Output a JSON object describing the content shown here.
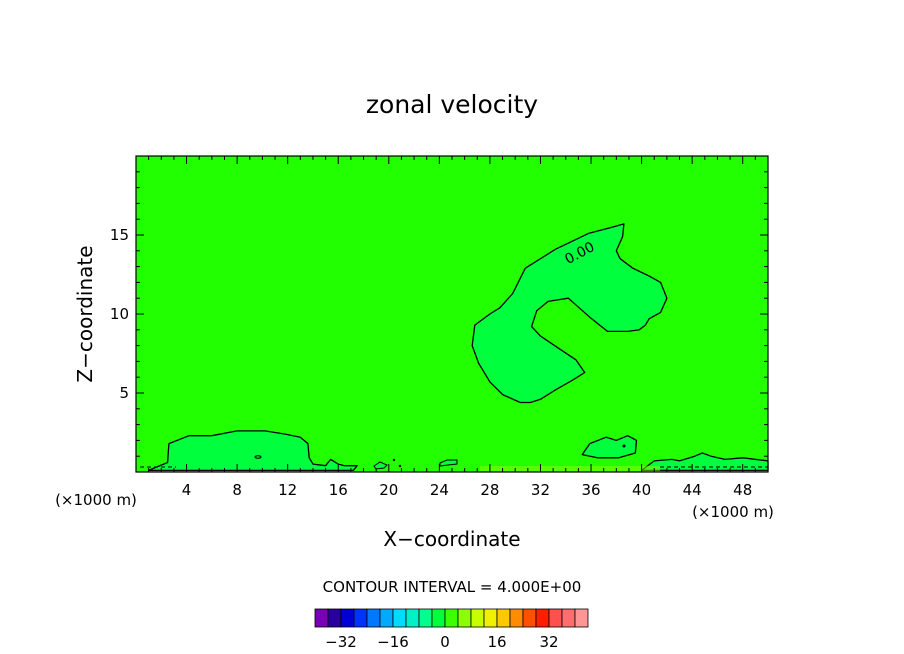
{
  "chart_data": {
    "type": "contour",
    "title": "zonal velocity",
    "xlabel": "X−coordinate",
    "ylabel": "Z−coordinate",
    "x_unit_left": "(×1000 m)",
    "x_unit_right": "(×1000 m)",
    "xlim": [
      0,
      50
    ],
    "ylim": [
      0,
      20
    ],
    "x_ticks": [
      4,
      8,
      12,
      16,
      20,
      24,
      28,
      32,
      36,
      40,
      44,
      48
    ],
    "y_ticks": [
      5,
      10,
      15
    ],
    "contour_label": "0.00",
    "contour_interval_text": "CONTOUR INTERVAL = 4.000E+00",
    "colorbar": {
      "ticks": [
        -32,
        -16,
        0,
        16,
        32
      ],
      "tick_labels": [
        "−32",
        "−16",
        "0",
        "16",
        "32"
      ],
      "colors": [
        "#7a00b4",
        "#2800a0",
        "#0000d2",
        "#0032ff",
        "#0078ff",
        "#00aaff",
        "#00dcff",
        "#00f0c8",
        "#00ff8c",
        "#00ff3c",
        "#3cff00",
        "#8cff00",
        "#c8ff00",
        "#f0f000",
        "#ffc800",
        "#ff8c00",
        "#ff5000",
        "#ff1e00",
        "#ff5050",
        "#ff6e6e",
        "#ff9696"
      ]
    },
    "background_color": "#22ff00",
    "region_color": "#00ff3c",
    "regions": [
      {
        "name": "positive-zone-main",
        "points": [
          [
            30.4,
            4.4
          ],
          [
            29.0,
            4.9
          ],
          [
            28.0,
            5.7
          ],
          [
            27.1,
            6.9
          ],
          [
            26.6,
            8.0
          ],
          [
            26.8,
            9.3
          ],
          [
            28.0,
            10.0
          ],
          [
            28.8,
            10.4
          ],
          [
            29.8,
            11.3
          ],
          [
            30.8,
            12.9
          ],
          [
            33.2,
            14.1
          ],
          [
            35.8,
            15.1
          ],
          [
            37.7,
            15.5
          ],
          [
            38.6,
            15.7
          ],
          [
            38.5,
            14.9
          ],
          [
            38.0,
            14.0
          ],
          [
            38.3,
            13.5
          ],
          [
            39.3,
            12.9
          ],
          [
            40.6,
            12.4
          ],
          [
            41.5,
            12.0
          ],
          [
            42.0,
            11.0
          ],
          [
            41.5,
            10.1
          ],
          [
            40.6,
            9.7
          ],
          [
            40.3,
            9.3
          ],
          [
            39.8,
            9.0
          ],
          [
            38.9,
            8.9
          ],
          [
            37.3,
            8.9
          ],
          [
            35.9,
            9.8
          ],
          [
            34.2,
            11.0
          ],
          [
            32.6,
            10.8
          ],
          [
            31.7,
            10.2
          ],
          [
            31.3,
            9.2
          ],
          [
            32.0,
            8.6
          ],
          [
            33.5,
            7.8
          ],
          [
            34.8,
            7.1
          ],
          [
            35.5,
            6.3
          ],
          [
            34.5,
            5.8
          ],
          [
            33.2,
            5.2
          ],
          [
            32.0,
            4.6
          ],
          [
            31.2,
            4.4
          ]
        ]
      },
      {
        "name": "positive-zone-lower-left",
        "points": [
          [
            1.0,
            0.1
          ],
          [
            2.5,
            0.6
          ],
          [
            2.6,
            1.8
          ],
          [
            4.2,
            2.3
          ],
          [
            6.0,
            2.3
          ],
          [
            8.0,
            2.6
          ],
          [
            10.2,
            2.6
          ],
          [
            11.8,
            2.4
          ],
          [
            13.0,
            2.2
          ],
          [
            13.6,
            1.8
          ],
          [
            13.7,
            0.9
          ],
          [
            14.0,
            0.5
          ],
          [
            15.0,
            0.4
          ],
          [
            15.4,
            0.8
          ],
          [
            16.0,
            0.5
          ],
          [
            16.5,
            0.4
          ],
          [
            17.5,
            0.4
          ],
          [
            17.2,
            0.1
          ]
        ]
      },
      {
        "name": "positive-zone-lower-right",
        "points": [
          [
            35.3,
            1.1
          ],
          [
            35.9,
            1.8
          ],
          [
            37.2,
            2.2
          ],
          [
            38.0,
            2.0
          ],
          [
            38.9,
            2.3
          ],
          [
            39.6,
            2.0
          ],
          [
            39.5,
            1.2
          ],
          [
            38.2,
            0.9
          ],
          [
            36.5,
            0.9
          ]
        ]
      },
      {
        "name": "positive-zone-right-bottom",
        "points": [
          [
            40.0,
            0.1
          ],
          [
            41.0,
            0.7
          ],
          [
            42.4,
            0.8
          ],
          [
            43.0,
            0.7
          ],
          [
            44.2,
            1.0
          ],
          [
            44.8,
            1.2
          ],
          [
            45.5,
            1.0
          ],
          [
            46.6,
            0.8
          ],
          [
            48.0,
            0.9
          ],
          [
            50.0,
            0.7
          ],
          [
            50.0,
            0.1
          ]
        ]
      }
    ]
  }
}
